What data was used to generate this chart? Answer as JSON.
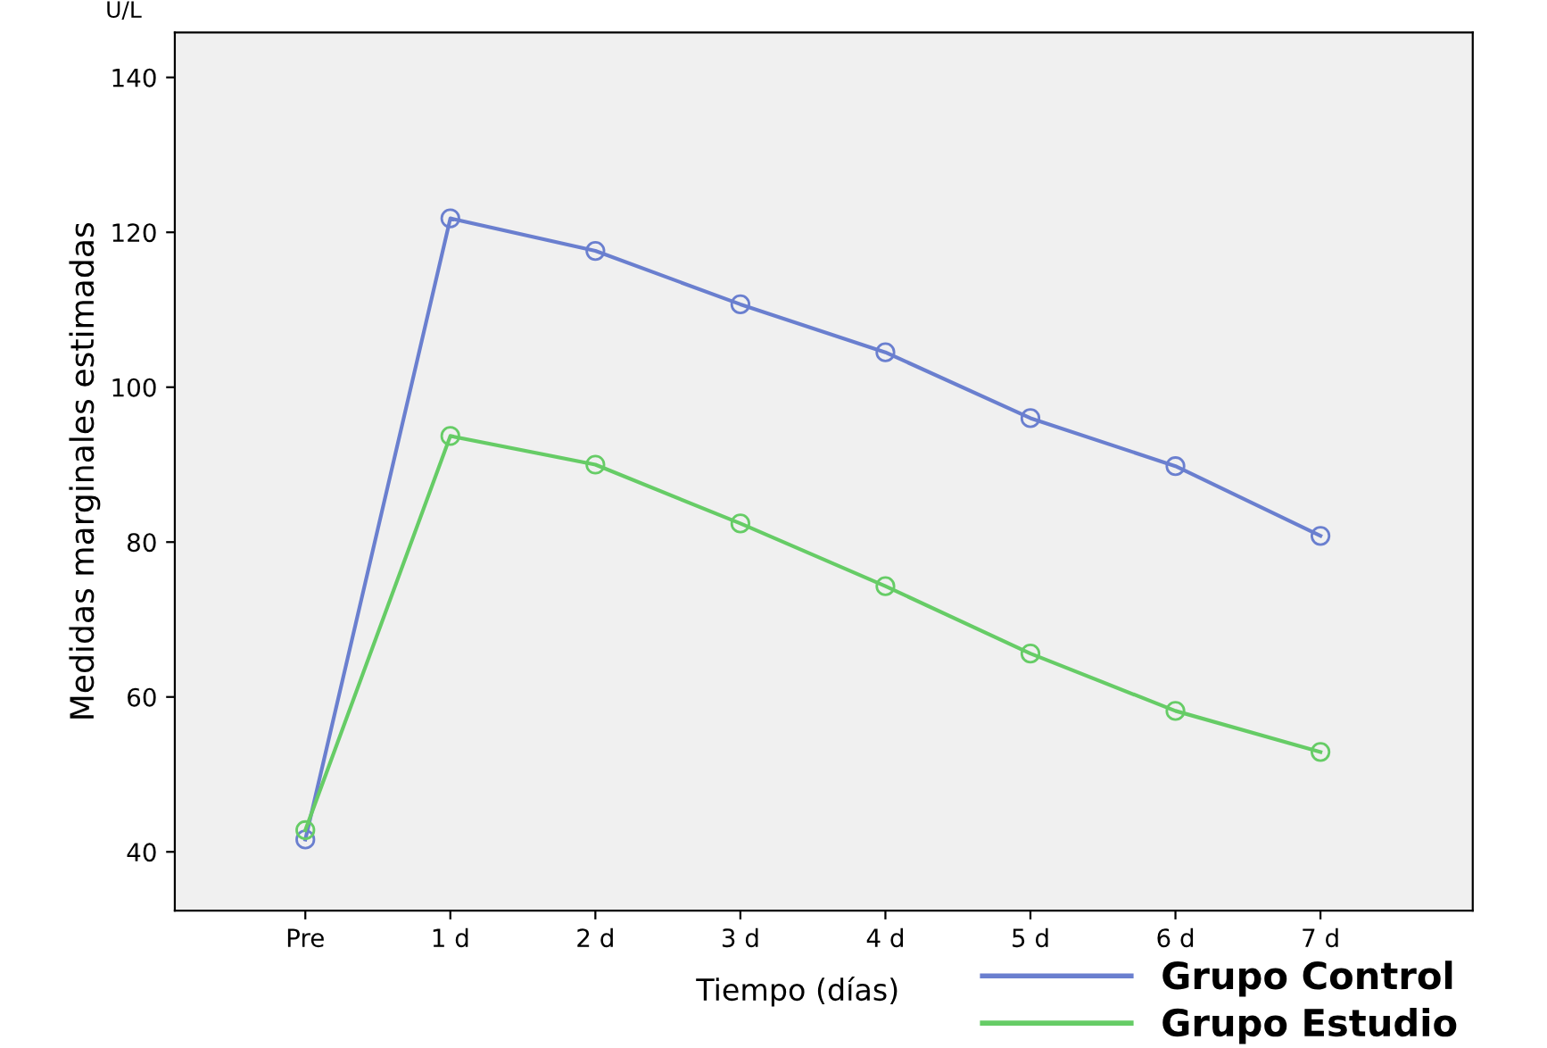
{
  "chart_data": {
    "type": "line",
    "xlabel": "Tiempo (días)",
    "ylabel": "Medidas marginales estimadas",
    "annotations": [
      "U/L"
    ],
    "categories": [
      "Pre",
      "1 d",
      "2 d",
      "3 d",
      "4 d",
      "5 d",
      "6 d",
      "7 d"
    ],
    "series": [
      {
        "name": "Grupo Control",
        "color": "#6a7fcf",
        "values": [
          41.6,
          121.8,
          117.6,
          110.7,
          104.5,
          96.0,
          89.8,
          80.8
        ]
      },
      {
        "name": "Grupo Estudio",
        "color": "#66cc66",
        "values": [
          42.8,
          93.7,
          90.0,
          82.4,
          74.3,
          65.6,
          58.2,
          52.9
        ]
      }
    ],
    "ylim": [
      32.4,
      145.8
    ],
    "yticks": [
      40,
      60,
      80,
      100,
      120,
      140
    ],
    "grid": false,
    "legend": "bottom right",
    "marker": "circle",
    "line_style": "solid"
  }
}
